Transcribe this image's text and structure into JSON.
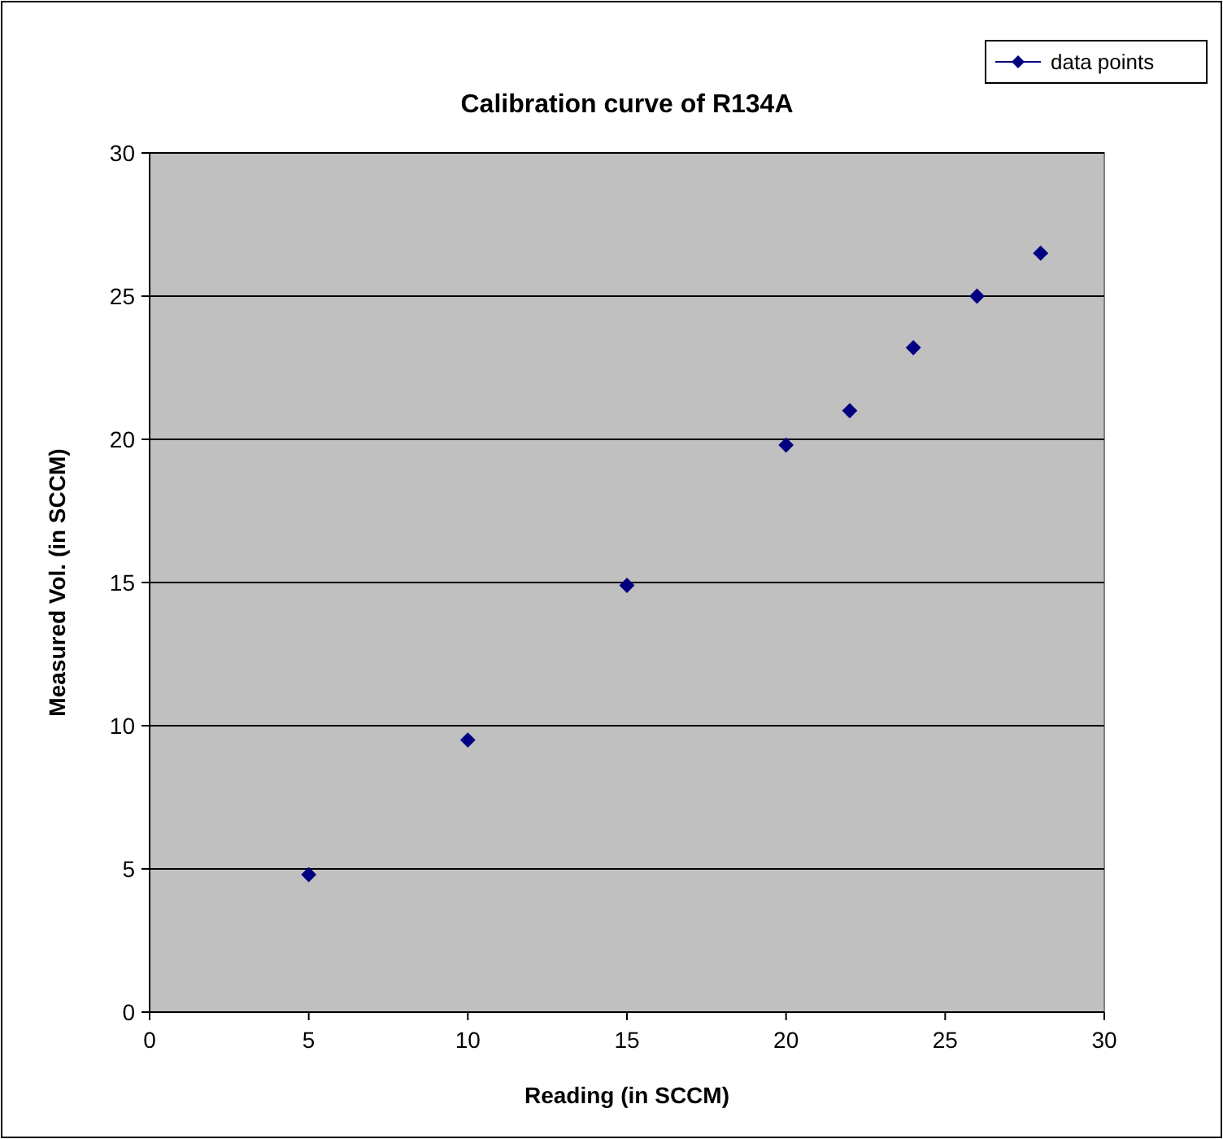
{
  "chart_data": {
    "type": "scatter",
    "title": "Calibration curve of R134A",
    "xlabel": "Reading (in SCCM)",
    "ylabel": "Measured Vol. (in SCCM)",
    "xlim": [
      0,
      30
    ],
    "xticks": [
      0,
      5,
      10,
      15,
      20,
      25,
      30
    ],
    "ylim": [
      0,
      30
    ],
    "yticks": [
      0,
      5,
      10,
      15,
      20,
      25,
      30
    ],
    "grid": "y",
    "legend": "top right",
    "marker": "diamond",
    "series": [
      {
        "name": "data points",
        "color": "#000080",
        "x": [
          5,
          10,
          15,
          20,
          22,
          24,
          26,
          28
        ],
        "values": [
          4.8,
          9.5,
          14.9,
          19.8,
          21.0,
          23.2,
          25.0,
          26.5
        ]
      }
    ]
  }
}
